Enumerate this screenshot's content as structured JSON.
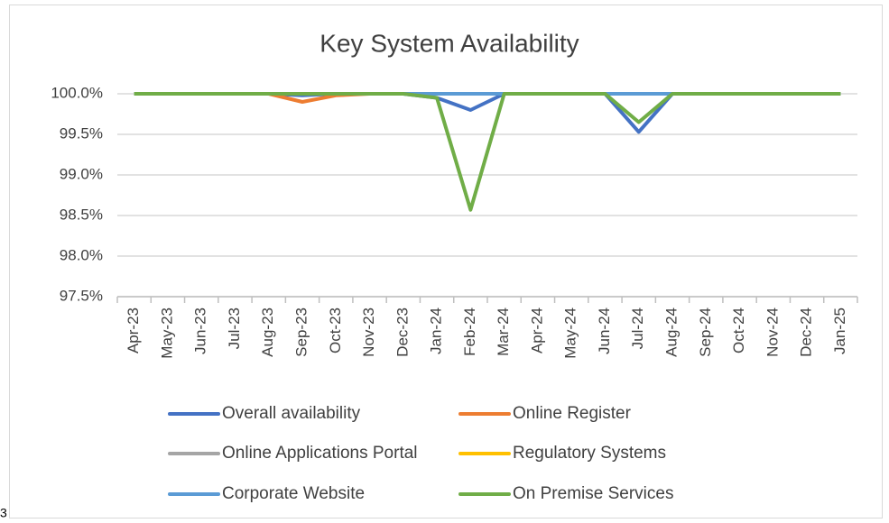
{
  "chart_data": {
    "type": "line",
    "title": "Key System Availability",
    "categories": [
      "Apr-23",
      "May-23",
      "Jun-23",
      "Jul-23",
      "Aug-23",
      "Sep-23",
      "Oct-23",
      "Nov-23",
      "Dec-23",
      "Jan-24",
      "Feb-24",
      "Mar-24",
      "Apr-24",
      "May-24",
      "Jun-24",
      "Jul-24",
      "Aug-24",
      "Sep-24",
      "Oct-24",
      "Nov-24",
      "Dec-24",
      "Jan-25"
    ],
    "series": [
      {
        "name": "Overall availability",
        "color": "#4472c4",
        "values": [
          100,
          100,
          100,
          100,
          100,
          99.98,
          100,
          100,
          100,
          99.95,
          99.8,
          100,
          100,
          100,
          100,
          99.53,
          100,
          100,
          100,
          100,
          100,
          100
        ]
      },
      {
        "name": "Online Register",
        "color": "#ed7d31",
        "values": [
          100,
          100,
          100,
          100,
          100,
          99.9,
          99.98,
          100,
          100,
          100,
          100,
          100,
          100,
          100,
          100,
          100,
          100,
          100,
          100,
          100,
          100,
          100
        ]
      },
      {
        "name": "Online Applications Portal",
        "color": "#a5a5a5",
        "values": [
          100,
          100,
          100,
          100,
          100,
          100,
          100,
          100,
          100,
          100,
          100,
          100,
          100,
          100,
          100,
          100,
          100,
          100,
          100,
          100,
          100,
          100
        ]
      },
      {
        "name": "Regulatory Systems",
        "color": "#ffc000",
        "values": [
          100,
          100,
          100,
          100,
          100,
          100,
          100,
          100,
          100,
          100,
          100,
          100,
          100,
          100,
          100,
          100,
          100,
          100,
          100,
          100,
          100,
          100
        ]
      },
      {
        "name": "Corporate Website",
        "color": "#5b9bd5",
        "values": [
          100,
          100,
          100,
          100,
          100,
          100,
          100,
          100,
          100,
          100,
          100,
          100,
          100,
          100,
          100,
          100,
          100,
          100,
          100,
          100,
          100,
          100
        ]
      },
      {
        "name": "On Premise Services",
        "color": "#70ad47",
        "values": [
          100,
          100,
          100,
          100,
          100,
          100,
          100,
          100,
          100,
          99.95,
          98.57,
          100,
          100,
          100,
          100,
          99.65,
          100,
          100,
          100,
          100,
          100,
          100
        ]
      }
    ],
    "ylim": [
      97.5,
      100
    ],
    "yticks": [
      {
        "value": 97.5,
        "label": "97.5%"
      },
      {
        "value": 98,
        "label": "98.0%"
      },
      {
        "value": 98.5,
        "label": "98.5%"
      },
      {
        "value": 99,
        "label": "99.0%"
      },
      {
        "value": 99.5,
        "label": "99.5%"
      },
      {
        "value": 100,
        "label": "100.0%"
      }
    ],
    "grid": true,
    "legend": "bottom"
  },
  "footnote_fragment": "3"
}
